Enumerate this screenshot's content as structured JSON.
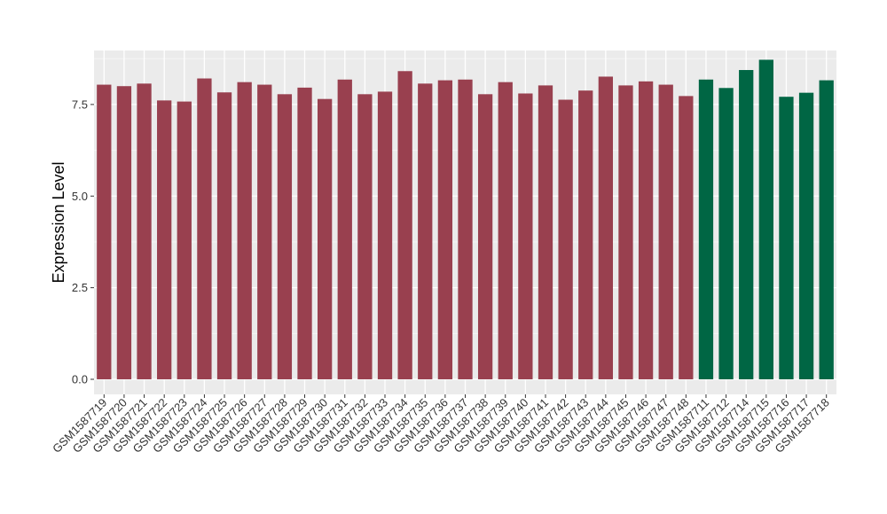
{
  "chart_data": {
    "type": "bar",
    "title": "",
    "xlabel": "",
    "ylabel": "Expression Level",
    "ylim": [
      0,
      8.9
    ],
    "yticks": [
      0.0,
      2.5,
      5.0,
      7.5
    ],
    "ytick_labels": [
      "0.0",
      "2.5",
      "5.0",
      "7.5"
    ],
    "grid": true,
    "legend": "none",
    "categories": [
      "GSM1587719",
      "GSM1587720",
      "GSM1587721",
      "GSM1587722",
      "GSM1587723",
      "GSM1587724",
      "GSM1587725",
      "GSM1587726",
      "GSM1587727",
      "GSM1587728",
      "GSM1587729",
      "GSM1587730",
      "GSM1587731",
      "GSM1587732",
      "GSM1587733",
      "GSM1587734",
      "GSM1587735",
      "GSM1587736",
      "GSM1587737",
      "GSM1587738",
      "GSM1587739",
      "GSM1587740",
      "GSM1587741",
      "GSM1587742",
      "GSM1587743",
      "GSM1587744",
      "GSM1587745",
      "GSM1587746",
      "GSM1587747",
      "GSM1587748",
      "GSM1587711",
      "GSM1587712",
      "GSM1587714",
      "GSM1587715",
      "GSM1587716",
      "GSM1587717",
      "GSM1587718"
    ],
    "values": [
      8.04,
      8.0,
      8.07,
      7.61,
      7.58,
      8.21,
      7.83,
      8.11,
      8.04,
      7.78,
      7.96,
      7.65,
      8.18,
      7.78,
      7.85,
      8.41,
      8.07,
      8.16,
      8.18,
      7.78,
      8.11,
      7.8,
      8.02,
      7.63,
      7.88,
      8.26,
      8.02,
      8.13,
      8.04,
      7.73,
      8.18,
      7.95,
      8.44,
      8.72,
      7.71,
      7.82,
      8.16
    ],
    "group_colors": [
      "#99404f",
      "#99404f",
      "#99404f",
      "#99404f",
      "#99404f",
      "#99404f",
      "#99404f",
      "#99404f",
      "#99404f",
      "#99404f",
      "#99404f",
      "#99404f",
      "#99404f",
      "#99404f",
      "#99404f",
      "#99404f",
      "#99404f",
      "#99404f",
      "#99404f",
      "#99404f",
      "#99404f",
      "#99404f",
      "#99404f",
      "#99404f",
      "#99404f",
      "#99404f",
      "#99404f",
      "#99404f",
      "#99404f",
      "#99404f",
      "#006644",
      "#006644",
      "#006644",
      "#006644",
      "#006644",
      "#006644",
      "#006644"
    ],
    "colors": {
      "panel_background": "#ebebeb",
      "grid_major": "#ffffff",
      "grid_minor": "#f5f5f5"
    }
  }
}
